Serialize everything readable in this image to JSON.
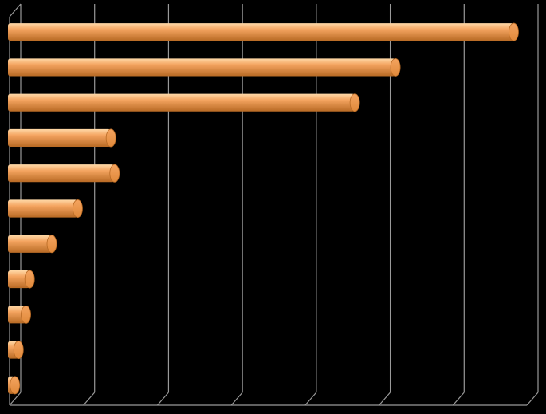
{
  "chart_data": {
    "type": "bar",
    "orientation": "horizontal",
    "style": "3d-cylinder",
    "title": "",
    "xlabel": "",
    "ylabel": "",
    "categories": [
      "",
      "",
      "",
      "",
      "",
      "",
      "",
      "",
      "",
      "",
      ""
    ],
    "values": [
      68,
      52,
      46.5,
      13.5,
      14,
      9,
      5.5,
      2.5,
      2,
      1,
      0.5
    ],
    "xlim": [
      0,
      70
    ],
    "grid": true,
    "legend": "none",
    "tick_labels_visible": false,
    "colors": {
      "bar": "#F4A460",
      "bar_highlight": "#FFD9A8",
      "bar_shadow": "#B86A24",
      "bar_cap": "#E0893A",
      "gridline": "#9A9A9A",
      "background": "#000000"
    }
  }
}
